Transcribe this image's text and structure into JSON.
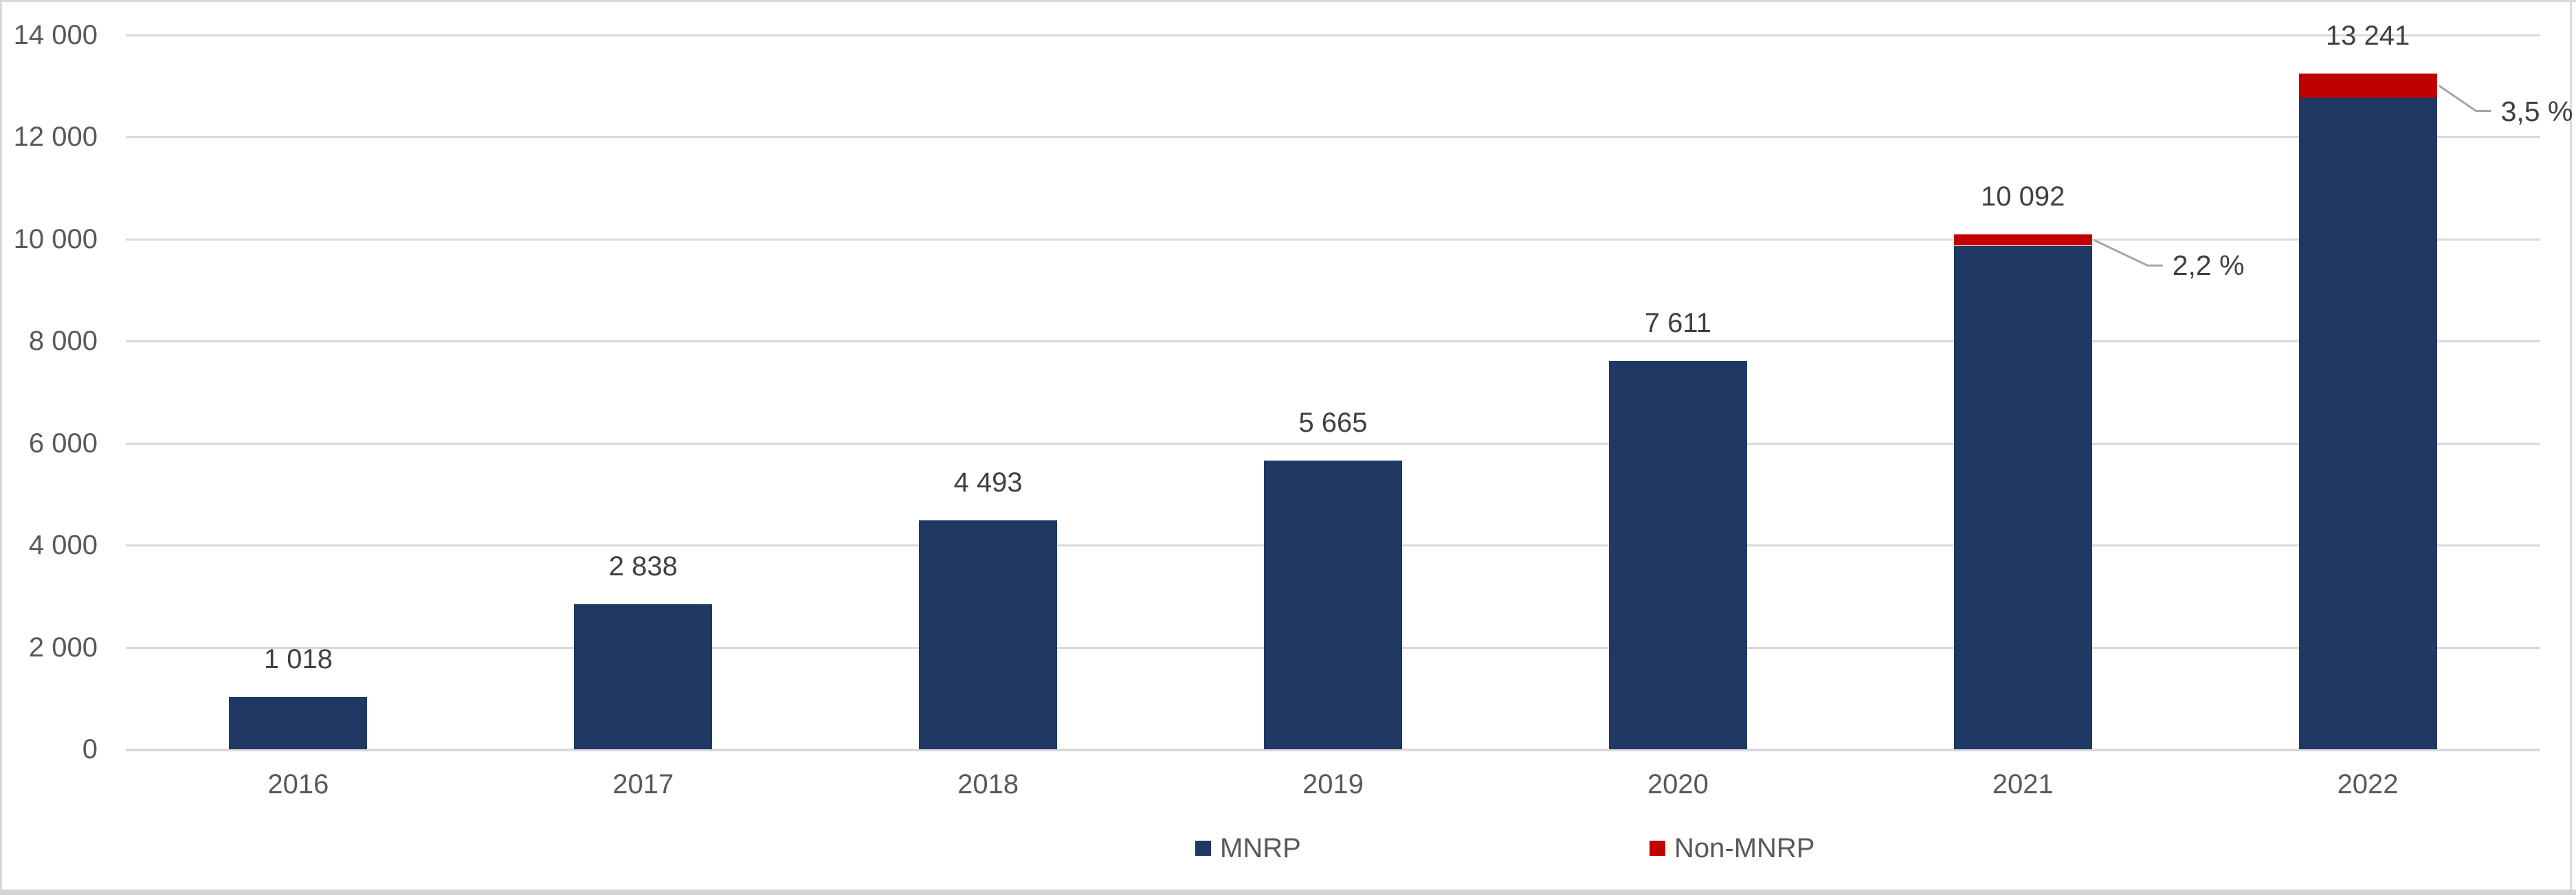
{
  "chart_data": {
    "type": "bar",
    "stacked": true,
    "title": "",
    "xlabel": "",
    "ylabel": "",
    "categories": [
      "2016",
      "2017",
      "2018",
      "2019",
      "2020",
      "2021",
      "2022"
    ],
    "series": [
      {
        "name": "MNRP",
        "color": "#1f3864",
        "values": [
          1018,
          2838,
          4493,
          5665,
          7611,
          9870,
          12778
        ]
      },
      {
        "name": "Non-MNRP",
        "color": "#c00000",
        "values": [
          0,
          0,
          0,
          0,
          0,
          222,
          463
        ]
      }
    ],
    "totals": [
      1018,
      2838,
      4493,
      5665,
      7611,
      10092,
      13241
    ],
    "total_labels": [
      "1 018",
      "2 838",
      "4 493",
      "5 665",
      "7 611",
      "10 092",
      "13 241"
    ],
    "callouts": [
      {
        "category": "2021",
        "label": "2,2 %",
        "percent": 2.2
      },
      {
        "category": "2022",
        "label": "3,5 %",
        "percent": 3.5
      }
    ],
    "ylim": [
      0,
      14000
    ],
    "ytick_step": 2000,
    "ytick_labels": [
      "0",
      "2 000",
      "4 000",
      "6 000",
      "8 000",
      "10 000",
      "12 000",
      "14 000"
    ],
    "grid": true,
    "legend_position": "bottom"
  },
  "colors": {
    "gridline": "#d9d9d9",
    "axis_text": "#595959",
    "value_text": "#404040",
    "leader_line": "#a6a6a6",
    "frame": "#d9d9d9",
    "window_edge": "#d4d4d4"
  }
}
